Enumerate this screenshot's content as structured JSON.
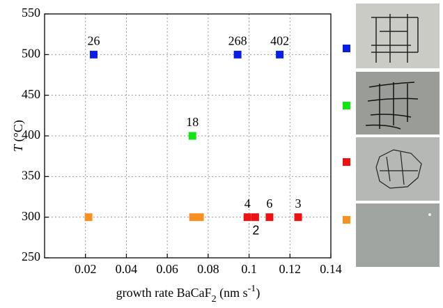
{
  "chart_data": {
    "type": "scatter",
    "x_label": [
      "growth rate BaCaF",
      "2",
      " (nm s",
      "-1",
      ")"
    ],
    "y_label": [
      "T",
      " (°C)"
    ],
    "xlim": [
      0.0,
      0.14
    ],
    "xticks": [
      0.02,
      0.04,
      0.06,
      0.08,
      0.1,
      0.12,
      0.14
    ],
    "ylim": [
      250,
      550
    ],
    "yticks": [
      250,
      300,
      350,
      400,
      450,
      500,
      550
    ],
    "grid": true,
    "series": [
      {
        "color": "#0a1ee6",
        "x": [
          0.024,
          0.0944,
          0.115
        ],
        "values": [
          500,
          500,
          500
        ],
        "labels": [
          "26",
          "268",
          "402"
        ]
      },
      {
        "color": "#12e612",
        "x": [
          0.0723
        ],
        "values": [
          400
        ],
        "labels": [
          "18"
        ]
      },
      {
        "color": "#ee1111",
        "x": [
          0.0992,
          0.103,
          0.11,
          0.124
        ],
        "values": [
          300,
          300,
          300,
          300
        ],
        "labels": [
          "4",
          "2",
          "6",
          "3"
        ]
      },
      {
        "color": "#f7901e",
        "x": [
          0.0215,
          0.0726,
          0.076
        ],
        "values": [
          300,
          300,
          300
        ],
        "labels": [
          null,
          null,
          null
        ]
      }
    ]
  }
}
